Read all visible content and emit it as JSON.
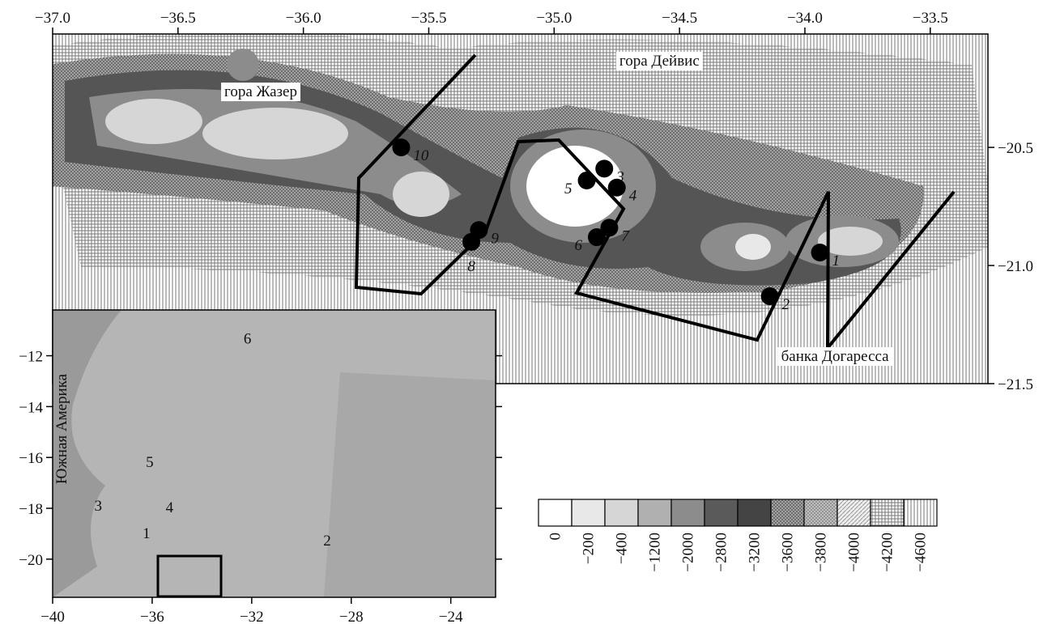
{
  "main_map": {
    "xlim": [
      -37.0,
      -33.27
    ],
    "ylim": [
      -20.02,
      -21.5
    ],
    "xticks": [
      {
        "value": -37.0,
        "label": "−37.0"
      },
      {
        "value": -36.5,
        "label": "−36.5"
      },
      {
        "value": -36.0,
        "label": "−36.0"
      },
      {
        "value": -35.5,
        "label": "−35.5"
      },
      {
        "value": -35.0,
        "label": "−35.0"
      },
      {
        "value": -34.5,
        "label": "−34.5"
      },
      {
        "value": -34.0,
        "label": "−34.0"
      },
      {
        "value": -33.5,
        "label": "−33.5"
      }
    ],
    "yticks": [
      {
        "value": -20.5,
        "label": "−20.5"
      },
      {
        "value": -21.0,
        "label": "−21.0"
      },
      {
        "value": -21.5,
        "label": "−21.5"
      }
    ],
    "place_labels": [
      {
        "text": "гора Жазер",
        "lon": -36.17,
        "lat": -20.26
      },
      {
        "text": "гора Дейвис",
        "lon": -34.58,
        "lat": -20.13
      },
      {
        "text": "банка Догаресса",
        "lon": -33.88,
        "lat": -21.38
      }
    ],
    "stations": [
      {
        "label": "1",
        "lon": -33.94,
        "lat": -20.945
      },
      {
        "label": "2",
        "lon": -34.14,
        "lat": -21.13
      },
      {
        "label": "3",
        "lon": -34.8,
        "lat": -20.59
      },
      {
        "label": "4",
        "lon": -34.75,
        "lat": -20.67
      },
      {
        "label": "5",
        "lon": -34.87,
        "lat": -20.64
      },
      {
        "label": "6",
        "lon": -34.83,
        "lat": -20.88
      },
      {
        "label": "7",
        "lon": -34.78,
        "lat": -20.84
      },
      {
        "label": "8",
        "lon": -35.33,
        "lat": -20.9
      },
      {
        "label": "9",
        "lon": -35.3,
        "lat": -20.85
      },
      {
        "label": "10",
        "lon": -35.61,
        "lat": -20.5
      }
    ]
  },
  "inset_map": {
    "xlim": [
      -40,
      -22.2
    ],
    "ylim": [
      -10.2,
      -21.5
    ],
    "xticks": [
      {
        "value": -40,
        "label": "−40"
      },
      {
        "value": -36,
        "label": "−36"
      },
      {
        "value": -32,
        "label": "−32"
      },
      {
        "value": -28,
        "label": "−28"
      },
      {
        "value": -24,
        "label": "−24"
      }
    ],
    "yticks": [
      {
        "value": -12,
        "label": "−12"
      },
      {
        "value": -14,
        "label": "−14"
      },
      {
        "value": -16,
        "label": "−16"
      },
      {
        "value": -18,
        "label": "−18"
      },
      {
        "value": -20,
        "label": "−20"
      }
    ],
    "continent_label": "Южная Америка",
    "labels": [
      {
        "text": "6",
        "lon": -32.17,
        "lat": -11.52
      },
      {
        "text": "5",
        "lon": -36.1,
        "lat": -16.38
      },
      {
        "text": "3",
        "lon": -38.17,
        "lat": -18.1
      },
      {
        "text": "4",
        "lon": -35.3,
        "lat": -18.16
      },
      {
        "text": "1",
        "lon": -36.23,
        "lat": -19.17
      },
      {
        "text": "2",
        "lon": -28.97,
        "lat": -19.46
      }
    ]
  },
  "legend": {
    "values": [
      {
        "value": 0,
        "label": "0"
      },
      {
        "value": -200,
        "label": "−200"
      },
      {
        "value": -400,
        "label": "−400"
      },
      {
        "value": -1200,
        "label": "−1200"
      },
      {
        "value": -2000,
        "label": "−2000"
      },
      {
        "value": -2800,
        "label": "−2800"
      },
      {
        "value": -3200,
        "label": "−3200"
      },
      {
        "value": -3600,
        "label": "−3600"
      },
      {
        "value": -3800,
        "label": "−3800"
      },
      {
        "value": -4000,
        "label": "−4000"
      },
      {
        "value": -4200,
        "label": "−4200"
      },
      {
        "value": -4600,
        "label": "−4600"
      }
    ],
    "fills": [
      "#ffffff",
      "#e8e8e8",
      "#d6d6d6",
      "#b0b0b0",
      "#8c8c8c",
      "#5a5a5a",
      "#444444",
      "url(#p-cross)",
      "url(#p-cross2)",
      "url(#p-light)",
      "url(#p-grid)",
      "url(#p-vert)"
    ]
  }
}
